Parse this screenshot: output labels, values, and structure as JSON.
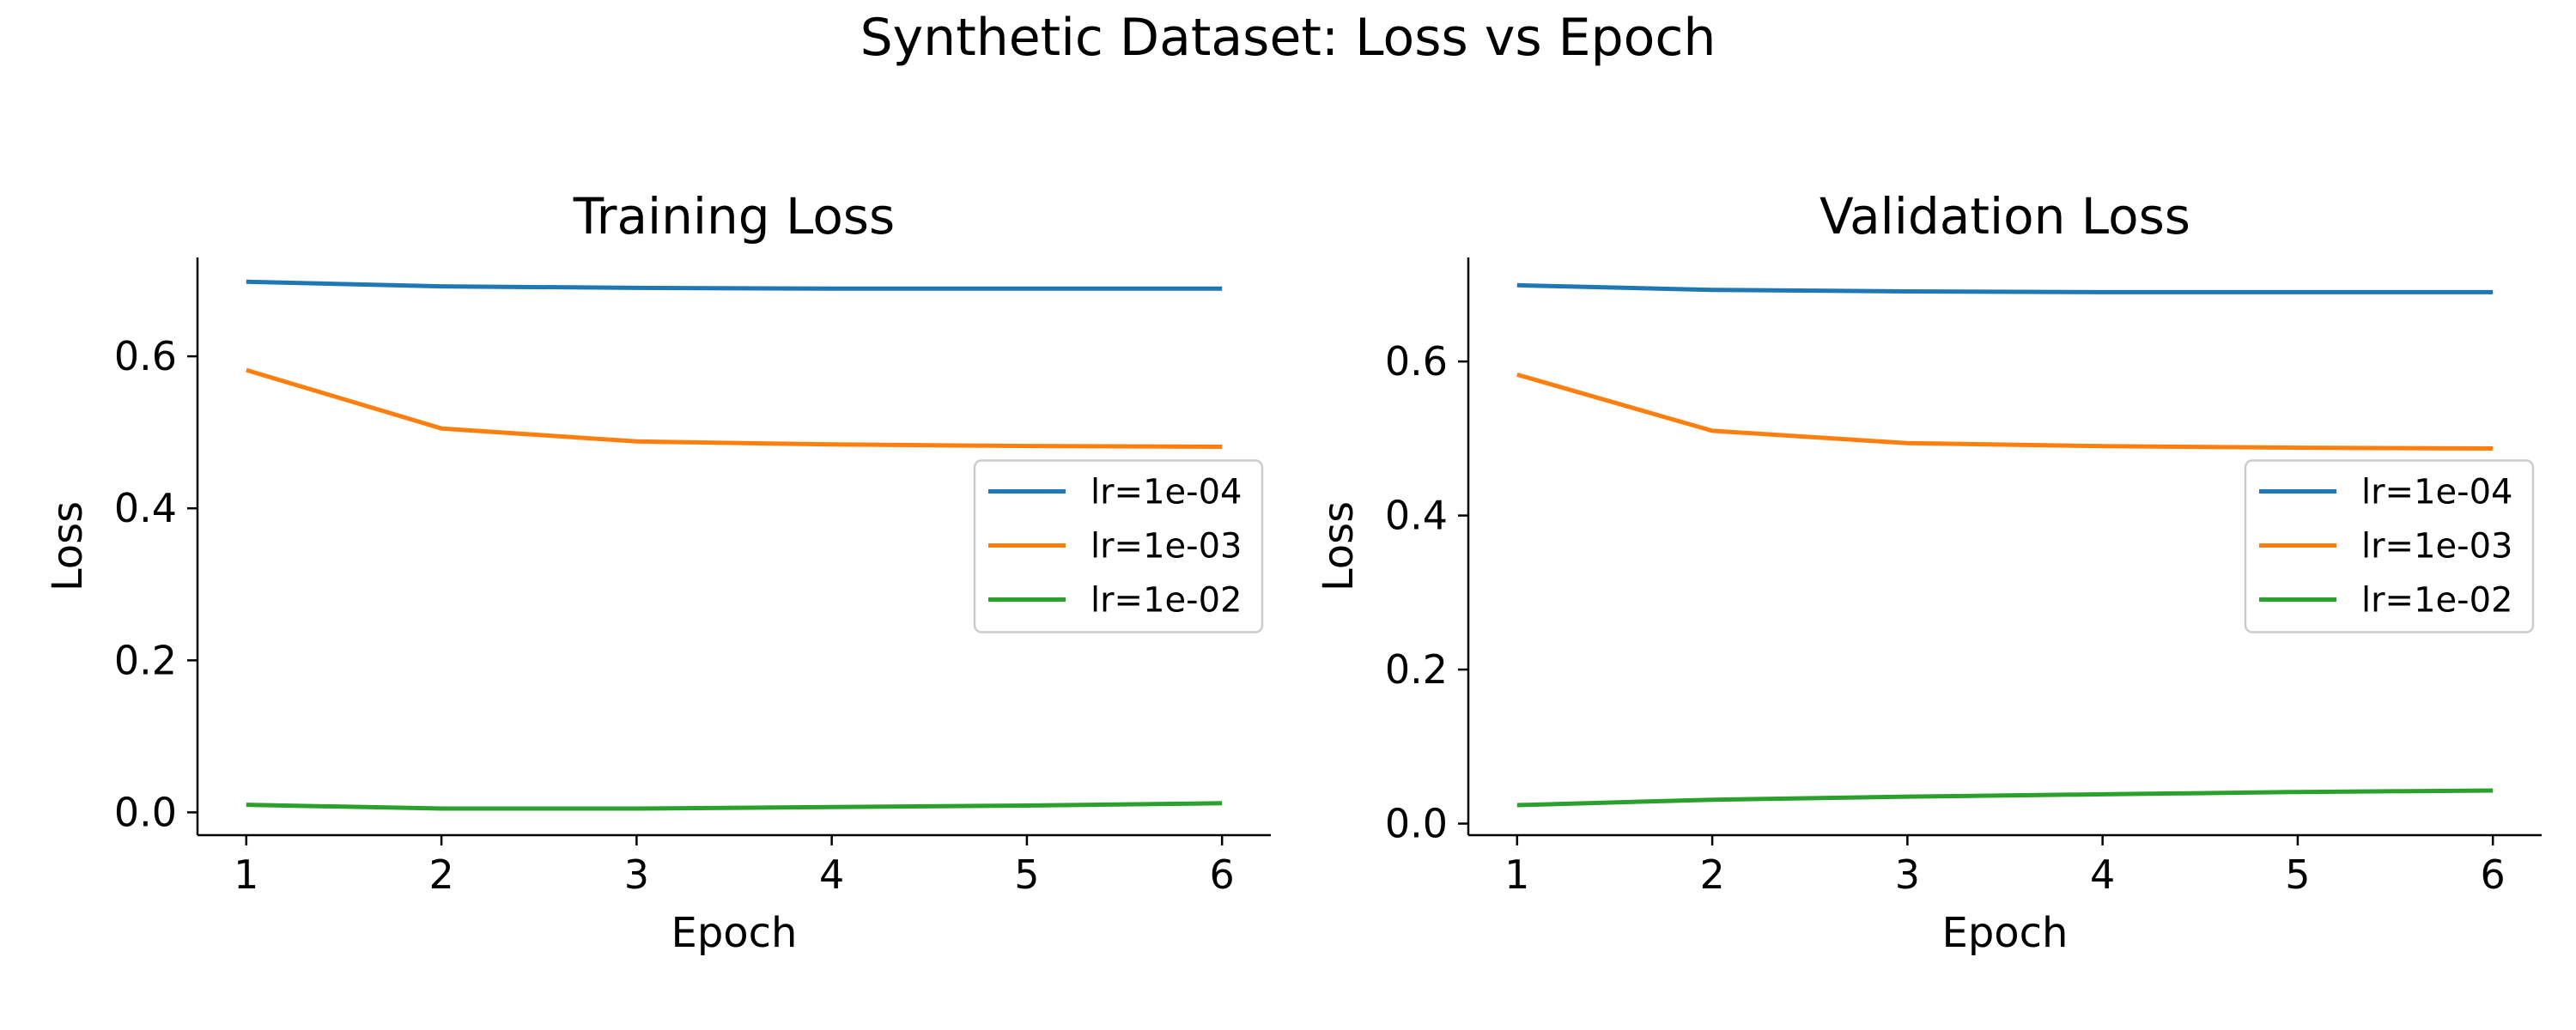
{
  "figure_title": "Synthetic Dataset: Loss vs Epoch",
  "colors": {
    "lr=1e-04": "#1f77b4",
    "lr=1e-03": "#ff7f0e",
    "lr=1e-02": "#2ca02c"
  },
  "chart_data": [
    {
      "type": "line",
      "title": "Training Loss",
      "xlabel": "Epoch",
      "ylabel": "Loss",
      "x": [
        1,
        2,
        3,
        4,
        5,
        6
      ],
      "xlim": [
        0.75,
        6.25
      ],
      "ylim": [
        -0.03,
        0.73
      ],
      "xticks": [
        1,
        2,
        3,
        4,
        5,
        6
      ],
      "yticks": [
        0.0,
        0.2,
        0.4,
        0.6
      ],
      "legend": "center-right",
      "grid": false,
      "series": [
        {
          "name": "lr=1e-04",
          "values": [
            0.698,
            0.692,
            0.69,
            0.689,
            0.689,
            0.689
          ]
        },
        {
          "name": "lr=1e-03",
          "values": [
            0.582,
            0.505,
            0.488,
            0.484,
            0.482,
            0.481
          ]
        },
        {
          "name": "lr=1e-02",
          "values": [
            0.01,
            0.005,
            0.005,
            0.007,
            0.009,
            0.012
          ]
        }
      ]
    },
    {
      "type": "line",
      "title": "Validation Loss",
      "xlabel": "Epoch",
      "ylabel": "Loss",
      "x": [
        1,
        2,
        3,
        4,
        5,
        6
      ],
      "xlim": [
        0.75,
        6.25
      ],
      "ylim": [
        -0.015,
        0.735
      ],
      "xticks": [
        1,
        2,
        3,
        4,
        5,
        6
      ],
      "yticks": [
        0.0,
        0.2,
        0.4,
        0.6
      ],
      "legend": "center-right",
      "grid": false,
      "series": [
        {
          "name": "lr=1e-04",
          "values": [
            0.699,
            0.693,
            0.691,
            0.69,
            0.69,
            0.69
          ]
        },
        {
          "name": "lr=1e-03",
          "values": [
            0.583,
            0.51,
            0.494,
            0.49,
            0.488,
            0.487
          ]
        },
        {
          "name": "lr=1e-02",
          "values": [
            0.024,
            0.031,
            0.035,
            0.038,
            0.041,
            0.043
          ]
        }
      ]
    }
  ]
}
